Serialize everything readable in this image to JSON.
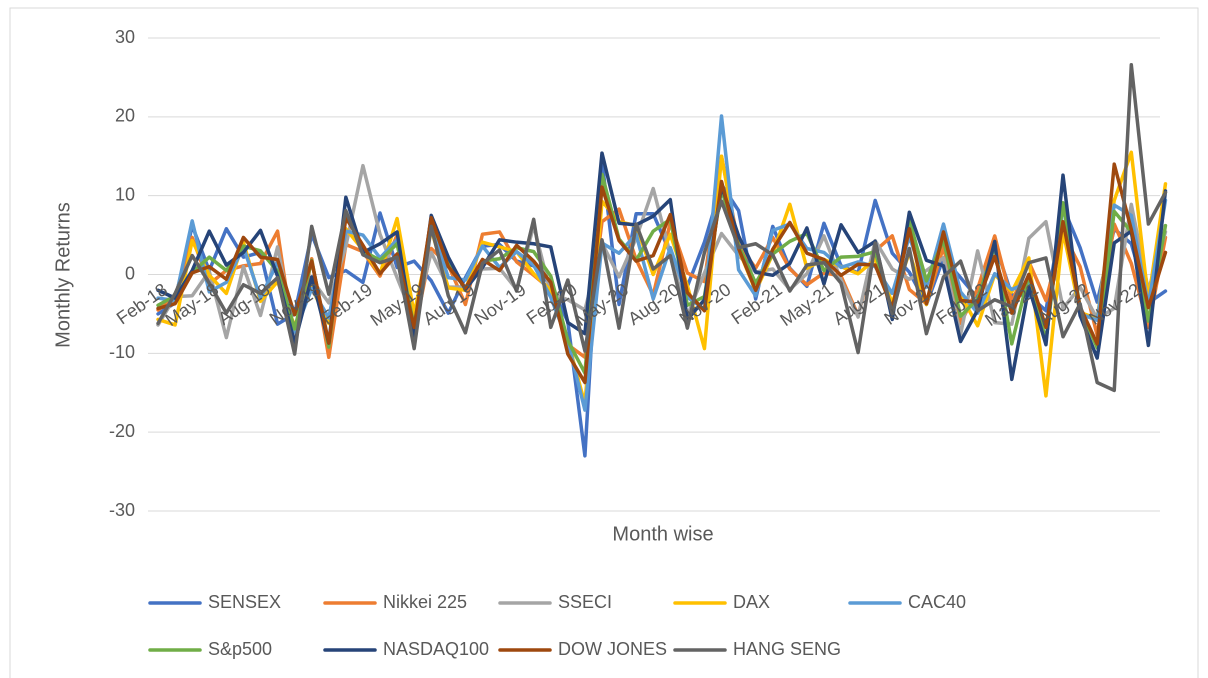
{
  "chart_data": {
    "type": "line",
    "x_label": "Month wise",
    "y_label": "Monthly Returns",
    "categories": [
      "Feb-18",
      null,
      null,
      "May-18",
      null,
      null,
      "Aug-18",
      null,
      null,
      "Nov-18",
      null,
      null,
      "Feb-19",
      null,
      null,
      "May-19",
      null,
      null,
      "Aug-19",
      null,
      null,
      "Nov-19",
      null,
      null,
      "Feb-20",
      null,
      null,
      "May-20",
      null,
      null,
      "Aug-20",
      null,
      null,
      "Nov-20",
      null,
      null,
      "Feb-21",
      null,
      null,
      "May-21",
      null,
      null,
      "Aug-21",
      null,
      null,
      "Nov-21",
      null,
      null,
      "Feb-22",
      null,
      null,
      "May-22",
      null,
      null,
      "Aug-22",
      null,
      null,
      "Nov-22",
      null,
      null
    ],
    "ylim": [
      -30,
      30
    ],
    "yticks": [
      -30,
      -20,
      -10,
      0,
      10,
      20,
      30
    ],
    "grid": true,
    "legend": "bottom",
    "series": [
      {
        "name": "SENSEX",
        "color": "#4472c4",
        "values": [
          -5,
          -3.6,
          6.2,
          0.5,
          5.8,
          2.2,
          2.8,
          -6.3,
          -5,
          5.1,
          -0.4,
          0.5,
          -1,
          7.8,
          0.9,
          1.7,
          -0.8,
          -4.9,
          -0.4,
          3.6,
          3.8,
          1.7,
          1.1,
          -1.3,
          -6,
          -23,
          14.4,
          -3.8,
          7.7,
          7.7,
          2.7,
          -1.5,
          4.1,
          11.4,
          8.1,
          -3.1,
          6.1,
          0.8,
          -1.5,
          6.5,
          1.1,
          0.2,
          9.4,
          2.7,
          0.3,
          -3.8,
          2.1,
          -0.4,
          -3,
          4,
          -2.6,
          -2.6,
          -4.6,
          8.6,
          3.4,
          -3.5,
          5.8,
          3.9,
          -3.6,
          -2.1
        ]
      },
      {
        "name": "Nikkei 225",
        "color": "#ed7d31",
        "values": [
          -4.5,
          -2.8,
          4.7,
          -1.2,
          0.5,
          1.1,
          1.4,
          5.5,
          -9.1,
          2,
          -10.5,
          3.8,
          2.9,
          -0.2,
          5,
          -7.4,
          3.3,
          1.2,
          -3.8,
          5.1,
          5.4,
          1.6,
          -0.1,
          -1.9,
          -8.9,
          -10.5,
          6.7,
          8.3,
          1.9,
          -2.6,
          6.6,
          0.2,
          -0.9,
          15,
          3.8,
          0.8,
          4.7,
          0.7,
          -1.3,
          0.2,
          -0.2,
          -5.2,
          3,
          4.9,
          -1.9,
          -3.7,
          3.5,
          -6.2,
          -1.8,
          4.9,
          -3.5,
          1.6,
          -3.3,
          5.3,
          1,
          -7.7,
          6.4,
          1.4,
          -6.7,
          4.7
        ]
      },
      {
        "name": "SSECI",
        "color": "#a5a5a5",
        "values": [
          -6.4,
          -2.8,
          -2.7,
          0.4,
          -8,
          1,
          -5.2,
          3.5,
          -7.7,
          -0.6,
          -3.6,
          3.6,
          13.8,
          5.1,
          -0.4,
          -5.8,
          2.8,
          -1.6,
          -1.6,
          0.7,
          0.8,
          -1.9,
          6.2,
          -2.4,
          -3.2,
          -4.5,
          4,
          -0.3,
          4.6,
          10.9,
          2.6,
          -5.2,
          0.2,
          5.2,
          2.4,
          0.3,
          0.7,
          -1.9,
          0.1,
          4.9,
          -0.7,
          -5.4,
          4.3,
          0.7,
          -0.6,
          0.5,
          2.1,
          -7.6,
          3,
          -6.1,
          -6.3,
          4.6,
          6.7,
          -4.3,
          -1.6,
          -5.6,
          -4.3,
          8.9,
          -2,
          5.4
        ]
      },
      {
        "name": "DAX",
        "color": "#ffc000",
        "values": [
          -5.7,
          -6.4,
          4.3,
          -0.1,
          -2.4,
          4.1,
          -3.4,
          -0.9,
          -6.5,
          -1.7,
          -6.2,
          5.8,
          3.1,
          0.1,
          7.1,
          -5,
          5.7,
          -1.7,
          -2,
          4.1,
          3.5,
          2.9,
          0.1,
          -2,
          -8.4,
          -16.4,
          9.3,
          6.7,
          6.2,
          0,
          5.1,
          -1.4,
          -9.4,
          15,
          3.2,
          -2.1,
          2.6,
          8.9,
          0.8,
          1.9,
          1,
          0.1,
          1.9,
          -3.6,
          2.8,
          -3.8,
          5.2,
          -2.6,
          -6.5,
          0,
          -2.2,
          2.1,
          -15.4,
          5.5,
          -4.8,
          -5.6,
          9.4,
          15.5,
          -3.3,
          11.5
        ]
      },
      {
        "name": "CAC40",
        "color": "#5b9bd5",
        "values": [
          -3,
          -3.3,
          6.8,
          -2.2,
          -1,
          3.5,
          -3,
          1.6,
          -7.3,
          -1.8,
          -5.5,
          5.5,
          5,
          2.1,
          4.4,
          -6.8,
          6.4,
          -0.4,
          -0.7,
          3.6,
          0.9,
          2.9,
          1.2,
          -2.9,
          -8.5,
          -17.2,
          4,
          2.7,
          5.1,
          -3.1,
          3.4,
          -2.9,
          -4.4,
          20.1,
          0.6,
          -2.7,
          5.6,
          6.4,
          3.3,
          2.8,
          0.9,
          1.6,
          1,
          -2.4,
          4.8,
          -1.6,
          6.4,
          -2.2,
          -4.9,
          0.1,
          -1.9,
          -1,
          -8.4,
          9,
          -5,
          -5.8,
          8.8,
          7.5,
          -3.9,
          9.4
        ]
      },
      {
        "name": "S&p500",
        "color": "#70ad47",
        "values": [
          -3.9,
          -2.7,
          0.3,
          2.2,
          0.5,
          3.6,
          3,
          0.4,
          -6.9,
          1.8,
          -9.2,
          7.9,
          3,
          1.8,
          3.9,
          -6.6,
          6.9,
          1.3,
          -1.8,
          1.7,
          2,
          3.4,
          2.9,
          -0.2,
          -8.4,
          -12.5,
          12.7,
          4.5,
          1.8,
          5.5,
          7,
          -3.9,
          -2.8,
          10.8,
          3.7,
          -1.1,
          2.6,
          4.2,
          5.2,
          0.5,
          2.2,
          2.3,
          2.9,
          -4.8,
          6.9,
          -0.8,
          4.4,
          -5.3,
          -3.1,
          3.6,
          -8.8,
          0,
          -8.4,
          9.1,
          -4.2,
          -9.3,
          8,
          5.4,
          -5.9,
          6.2
        ]
      },
      {
        "name": "NASDAQ100",
        "color": "#264478",
        "values": [
          -2,
          -3,
          0.5,
          5.5,
          1.2,
          2.8,
          5.6,
          -0.2,
          -8.7,
          -0.3,
          -8.7,
          9.8,
          2.8,
          3.9,
          5.4,
          -8.4,
          7.5,
          2.2,
          -1.9,
          0.9,
          4.4,
          4.1,
          3.9,
          3.5,
          -6.1,
          -7.5,
          15.4,
          6.5,
          6.3,
          7.4,
          9.5,
          -5.7,
          -3.2,
          11.2,
          4.9,
          0.3,
          -0.1,
          1.4,
          5.9,
          -1.2,
          6.3,
          2.8,
          4.2,
          -5.7,
          7.9,
          1.8,
          1.1,
          -8.5,
          -4.5,
          4.2,
          -13.3,
          -1.6,
          -8.9,
          12.6,
          -5.2,
          -10.6,
          4,
          5.5,
          -9,
          10.6
        ]
      },
      {
        "name": "DOW JONES",
        "color": "#9e480e",
        "values": [
          -4.3,
          -3.7,
          0.2,
          1,
          -0.6,
          4.7,
          2.2,
          1.9,
          -5.1,
          1.7,
          -8.7,
          7.2,
          3.7,
          0.1,
          2.6,
          -6.7,
          7.2,
          1,
          -1.7,
          1.9,
          0.5,
          3.7,
          1.7,
          -1,
          -10.1,
          -13.7,
          11.1,
          4.3,
          1.7,
          2.4,
          7.6,
          -2.3,
          -4.6,
          11.8,
          3.3,
          -2,
          3.2,
          6.6,
          2.7,
          1.9,
          -0.1,
          1.3,
          1.2,
          -4.3,
          5.8,
          -3.7,
          5.4,
          -3.3,
          -3.5,
          2.3,
          -4.9,
          0,
          -6.7,
          6.7,
          -4.1,
          -8.8,
          14,
          5.7,
          -4.2,
          2.8
        ]
      },
      {
        "name": "HANG SENG",
        "color": "#636363",
        "values": [
          -6.2,
          -2.4,
          2.4,
          -1.1,
          -4.9,
          -1.3,
          -2.4,
          -0.4,
          -10.1,
          6.1,
          -2.5,
          8.1,
          2.5,
          1.5,
          2.2,
          -9.4,
          6.1,
          -2.7,
          -7.4,
          1.4,
          3.1,
          -2.1,
          7,
          -6.7,
          -0.7,
          -9.7,
          4.4,
          -6.8,
          6.4,
          0.7,
          2.4,
          -6.8,
          2.8,
          9.3,
          3.4,
          3.9,
          2.5,
          -2.1,
          1.2,
          1.5,
          -1.1,
          -9.9,
          4,
          -5,
          3.3,
          -7.5,
          -0.3,
          1.7,
          -4.6,
          -3.2,
          -4.1,
          1.5,
          2.1,
          -7.9,
          -3.7,
          -13.7,
          -14.7,
          26.6,
          6.4,
          10.4
        ]
      }
    ]
  }
}
